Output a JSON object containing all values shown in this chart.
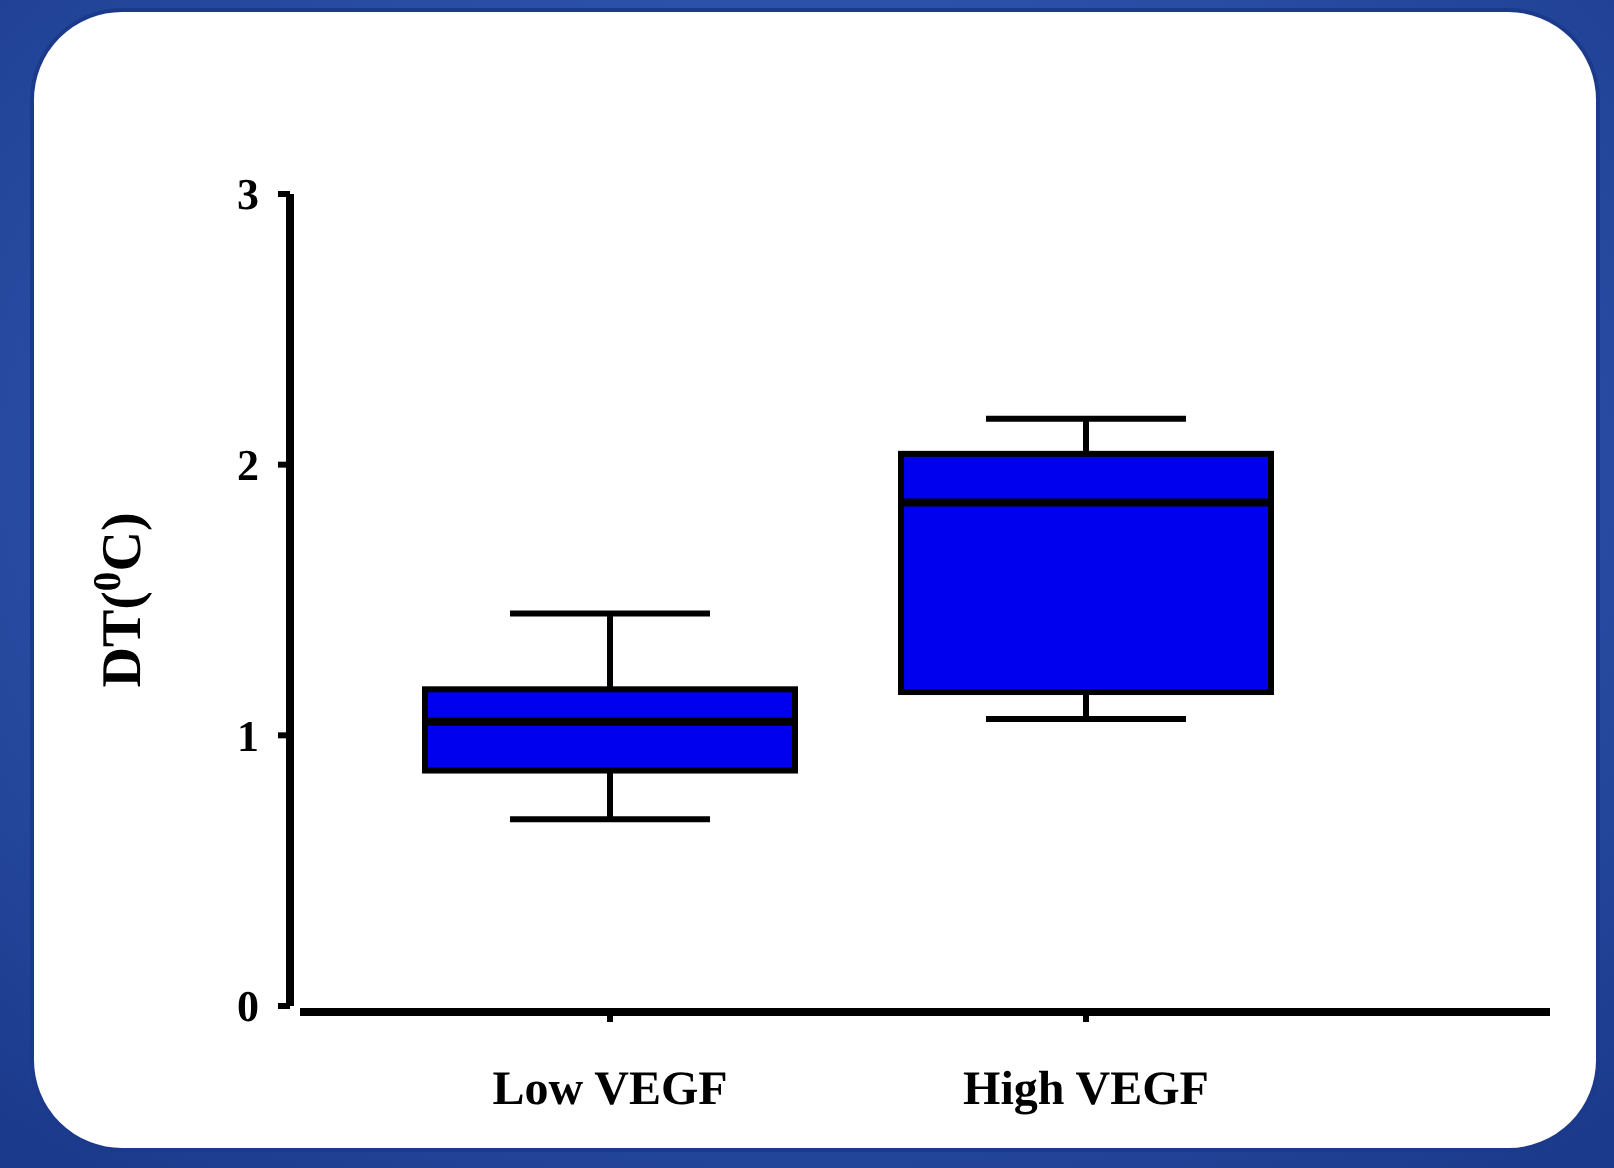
{
  "chart_data": {
    "type": "box",
    "ylabel": "DT($^{0}$C)",
    "categories": [
      "Low VEGF",
      "High VEGF"
    ],
    "color": "#0000ee",
    "boxes": [
      {
        "low": 0.69,
        "q1": 0.87,
        "median": 1.05,
        "q3": 1.17,
        "high": 1.45
      },
      {
        "low": 1.06,
        "q1": 1.16,
        "median": 1.86,
        "q3": 2.04,
        "high": 2.17
      }
    ],
    "ylim": [
      0,
      3
    ],
    "yticks": [
      0,
      1,
      2,
      3
    ],
    "grid": false
  }
}
